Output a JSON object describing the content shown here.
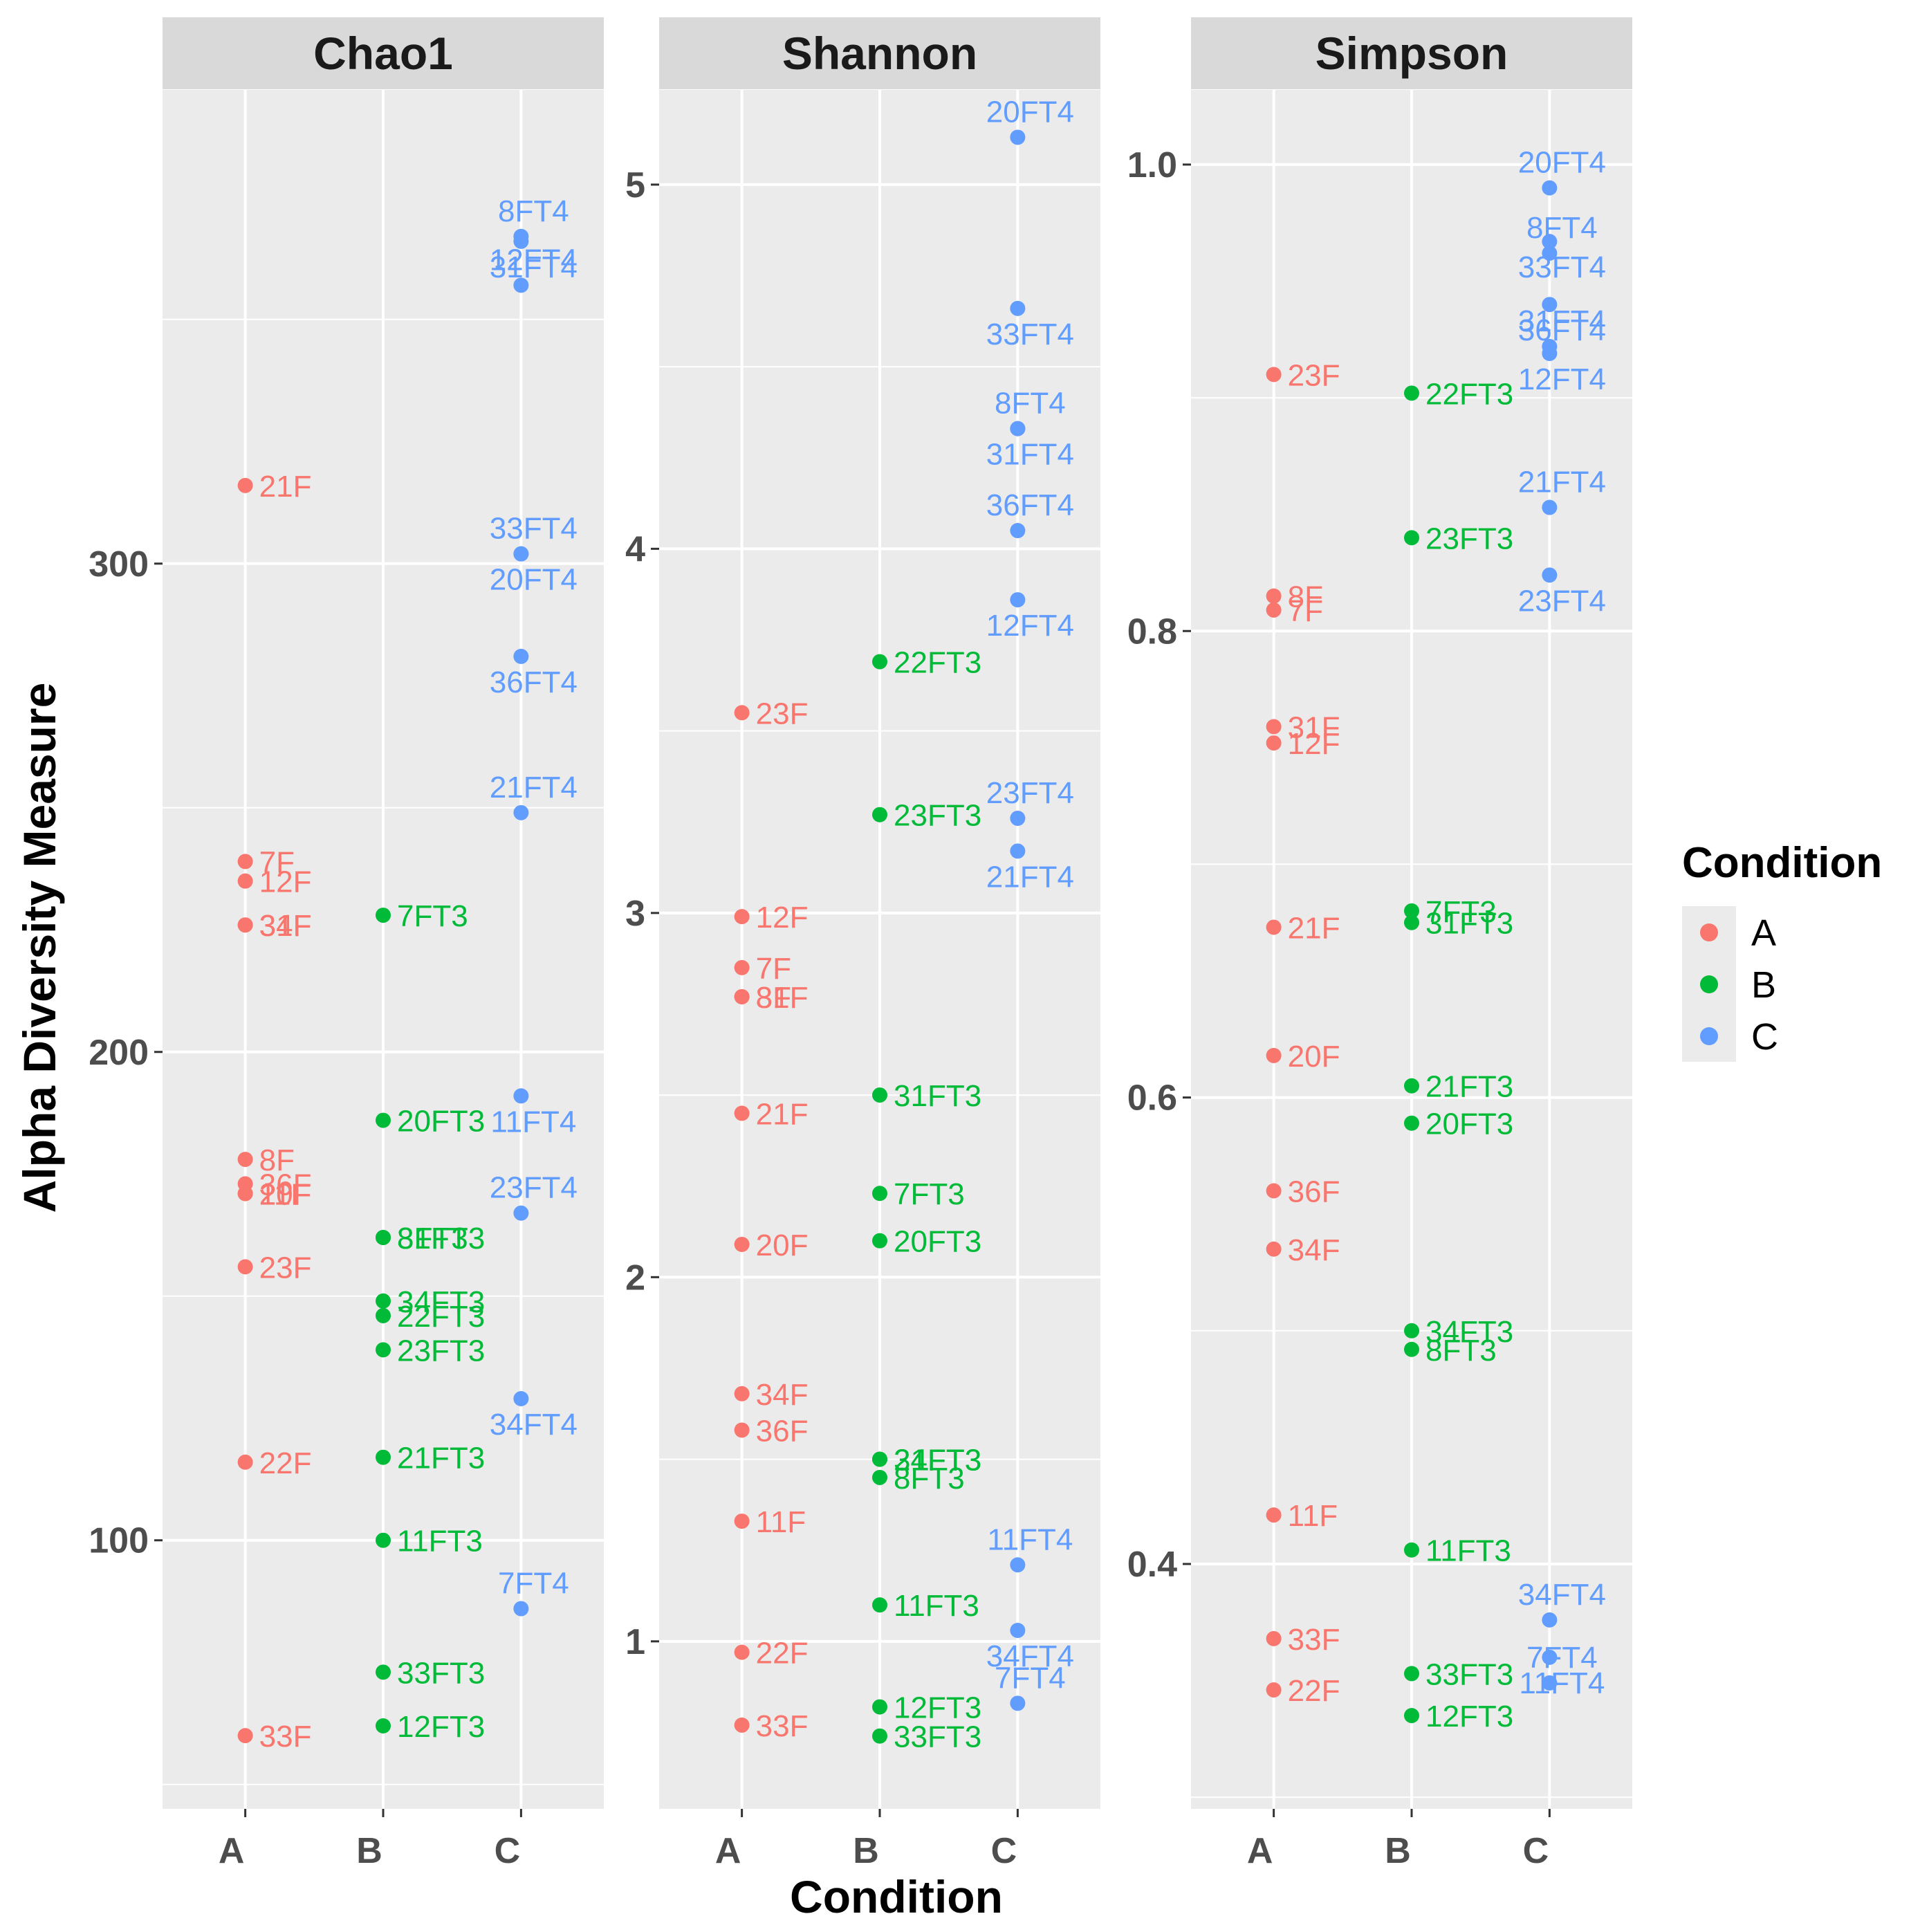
{
  "chart_data": {
    "type": "scatter",
    "xlabel": "Condition",
    "ylabel": "Alpha Diversity Measure",
    "categories": [
      "A",
      "B",
      "C"
    ],
    "legend": {
      "title": "Condition",
      "position": "right",
      "entries": [
        {
          "label": "A",
          "color": "#F8766D"
        },
        {
          "label": "B",
          "color": "#00BA38"
        },
        {
          "label": "C",
          "color": "#619CFF"
        }
      ]
    },
    "grid": true,
    "panels": [
      {
        "title": "Chao1",
        "ylim": [
          45,
          397
        ],
        "yticks": [
          100,
          200,
          300
        ],
        "points": [
          {
            "label": "21F",
            "cond": "A",
            "y": 316
          },
          {
            "label": "7F",
            "cond": "A",
            "y": 239
          },
          {
            "label": "12F",
            "cond": "A",
            "y": 235
          },
          {
            "label": "34F",
            "cond": "A",
            "y": 226
          },
          {
            "label": "31F",
            "cond": "A",
            "y": 226
          },
          {
            "label": "8F",
            "cond": "A",
            "y": 178
          },
          {
            "label": "36F",
            "cond": "A",
            "y": 173
          },
          {
            "label": "20F",
            "cond": "A",
            "y": 171
          },
          {
            "label": "11F",
            "cond": "A",
            "y": 171
          },
          {
            "label": "23F",
            "cond": "A",
            "y": 156
          },
          {
            "label": "22F",
            "cond": "A",
            "y": 116
          },
          {
            "label": "33F",
            "cond": "A",
            "y": 60
          },
          {
            "label": "7FT3",
            "cond": "B",
            "y": 228
          },
          {
            "label": "20FT3",
            "cond": "B",
            "y": 186
          },
          {
            "label": "8FT3",
            "cond": "B",
            "y": 162
          },
          {
            "label": "31FT3",
            "cond": "B",
            "y": 162
          },
          {
            "label": "34FT3",
            "cond": "B",
            "y": 149
          },
          {
            "label": "22FT3",
            "cond": "B",
            "y": 146
          },
          {
            "label": "23FT3",
            "cond": "B",
            "y": 139
          },
          {
            "label": "21FT3",
            "cond": "B",
            "y": 117
          },
          {
            "label": "11FT3",
            "cond": "B",
            "y": 100
          },
          {
            "label": "33FT3",
            "cond": "B",
            "y": 73
          },
          {
            "label": "12FT3",
            "cond": "B",
            "y": 62
          },
          {
            "label": "8FT4",
            "cond": "C",
            "y": 367
          },
          {
            "label": "31FT4",
            "cond": "C",
            "y": 366
          },
          {
            "label": "12FT4",
            "cond": "C",
            "y": 357
          },
          {
            "label": "20FT4",
            "cond": "C",
            "y": 302
          },
          {
            "label": "33FT4",
            "cond": "C",
            "y": 302
          },
          {
            "label": "36FT4",
            "cond": "C",
            "y": 281
          },
          {
            "label": "21FT4",
            "cond": "C",
            "y": 249
          },
          {
            "label": "11FT4",
            "cond": "C",
            "y": 191
          },
          {
            "label": "23FT4",
            "cond": "C",
            "y": 167
          },
          {
            "label": "34FT4",
            "cond": "C",
            "y": 129
          },
          {
            "label": "7FT4",
            "cond": "C",
            "y": 86
          }
        ]
      },
      {
        "title": "Shannon",
        "ylim": [
          0.54,
          5.26
        ],
        "yticks": [
          1,
          2,
          3,
          4,
          5
        ],
        "points": [
          {
            "label": "23F",
            "cond": "A",
            "y": 3.55
          },
          {
            "label": "12F",
            "cond": "A",
            "y": 2.99
          },
          {
            "label": "7F",
            "cond": "A",
            "y": 2.85
          },
          {
            "label": "31F",
            "cond": "A",
            "y": 2.77
          },
          {
            "label": "8F",
            "cond": "A",
            "y": 2.77
          },
          {
            "label": "21F",
            "cond": "A",
            "y": 2.45
          },
          {
            "label": "20F",
            "cond": "A",
            "y": 2.09
          },
          {
            "label": "34F",
            "cond": "A",
            "y": 1.68
          },
          {
            "label": "36F",
            "cond": "A",
            "y": 1.58
          },
          {
            "label": "11F",
            "cond": "A",
            "y": 1.33
          },
          {
            "label": "22F",
            "cond": "A",
            "y": 0.97
          },
          {
            "label": "33F",
            "cond": "A",
            "y": 0.77
          },
          {
            "label": "22FT3",
            "cond": "B",
            "y": 3.69
          },
          {
            "label": "23FT3",
            "cond": "B",
            "y": 3.27
          },
          {
            "label": "31FT3",
            "cond": "B",
            "y": 2.5
          },
          {
            "label": "7FT3",
            "cond": "B",
            "y": 2.23
          },
          {
            "label": "20FT3",
            "cond": "B",
            "y": 2.1
          },
          {
            "label": "34FT3",
            "cond": "B",
            "y": 1.5
          },
          {
            "label": "21FT3",
            "cond": "B",
            "y": 1.5
          },
          {
            "label": "8FT3",
            "cond": "B",
            "y": 1.45
          },
          {
            "label": "11FT3",
            "cond": "B",
            "y": 1.1
          },
          {
            "label": "12FT3",
            "cond": "B",
            "y": 0.82
          },
          {
            "label": "33FT3",
            "cond": "B",
            "y": 0.74
          },
          {
            "label": "20FT4",
            "cond": "C",
            "y": 5.13
          },
          {
            "label": "33FT4",
            "cond": "C",
            "y": 4.66
          },
          {
            "label": "8FT4",
            "cond": "C",
            "y": 4.33
          },
          {
            "label": "31FT4",
            "cond": "C",
            "y": 4.33
          },
          {
            "label": "36FT4",
            "cond": "C",
            "y": 4.05
          },
          {
            "label": "12FT4",
            "cond": "C",
            "y": 3.86
          },
          {
            "label": "23FT4",
            "cond": "C",
            "y": 3.26
          },
          {
            "label": "21FT4",
            "cond": "C",
            "y": 3.17
          },
          {
            "label": "11FT4",
            "cond": "C",
            "y": 1.21
          },
          {
            "label": "34FT4",
            "cond": "C",
            "y": 1.03
          },
          {
            "label": "7FT4",
            "cond": "C",
            "y": 0.83
          }
        ]
      },
      {
        "title": "Simpson",
        "ylim": [
          0.295,
          1.032
        ],
        "yticks": [
          0.4,
          0.6,
          0.8,
          1.0
        ],
        "yticklabels": [
          "0.4",
          "0.6",
          "0.8",
          "1.0"
        ],
        "points": [
          {
            "label": "23F",
            "cond": "A",
            "y": 0.91
          },
          {
            "label": "8F",
            "cond": "A",
            "y": 0.815
          },
          {
            "label": "7F",
            "cond": "A",
            "y": 0.809
          },
          {
            "label": "31F",
            "cond": "A",
            "y": 0.759
          },
          {
            "label": "12F",
            "cond": "A",
            "y": 0.752
          },
          {
            "label": "21F",
            "cond": "A",
            "y": 0.673
          },
          {
            "label": "20F",
            "cond": "A",
            "y": 0.618
          },
          {
            "label": "36F",
            "cond": "A",
            "y": 0.56
          },
          {
            "label": "34F",
            "cond": "A",
            "y": 0.535
          },
          {
            "label": "11F",
            "cond": "A",
            "y": 0.421
          },
          {
            "label": "33F",
            "cond": "A",
            "y": 0.368
          },
          {
            "label": "22F",
            "cond": "A",
            "y": 0.346
          },
          {
            "label": "22FT3",
            "cond": "B",
            "y": 0.902
          },
          {
            "label": "23FT3",
            "cond": "B",
            "y": 0.84
          },
          {
            "label": "7FT3",
            "cond": "B",
            "y": 0.68
          },
          {
            "label": "31FT3",
            "cond": "B",
            "y": 0.675
          },
          {
            "label": "21FT3",
            "cond": "B",
            "y": 0.605
          },
          {
            "label": "20FT3",
            "cond": "B",
            "y": 0.589
          },
          {
            "label": "34FT3",
            "cond": "B",
            "y": 0.5
          },
          {
            "label": "8FT3",
            "cond": "B",
            "y": 0.492
          },
          {
            "label": "11FT3",
            "cond": "B",
            "y": 0.406
          },
          {
            "label": "33FT3",
            "cond": "B",
            "y": 0.353
          },
          {
            "label": "12FT3",
            "cond": "B",
            "y": 0.335
          },
          {
            "label": "20FT4",
            "cond": "C",
            "y": 0.99
          },
          {
            "label": "33FT4",
            "cond": "C",
            "y": 0.967
          },
          {
            "label": "8FT4",
            "cond": "C",
            "y": 0.962
          },
          {
            "label": "36FT4",
            "cond": "C",
            "y": 0.94
          },
          {
            "label": "31FT4",
            "cond": "C",
            "y": 0.922
          },
          {
            "label": "12FT4",
            "cond": "C",
            "y": 0.919
          },
          {
            "label": "21FT4",
            "cond": "C",
            "y": 0.853
          },
          {
            "label": "23FT4",
            "cond": "C",
            "y": 0.824
          },
          {
            "label": "34FT4",
            "cond": "C",
            "y": 0.376
          },
          {
            "label": "11FT4",
            "cond": "C",
            "y": 0.36
          },
          {
            "label": "7FT4",
            "cond": "C",
            "y": 0.349
          }
        ]
      }
    ]
  }
}
